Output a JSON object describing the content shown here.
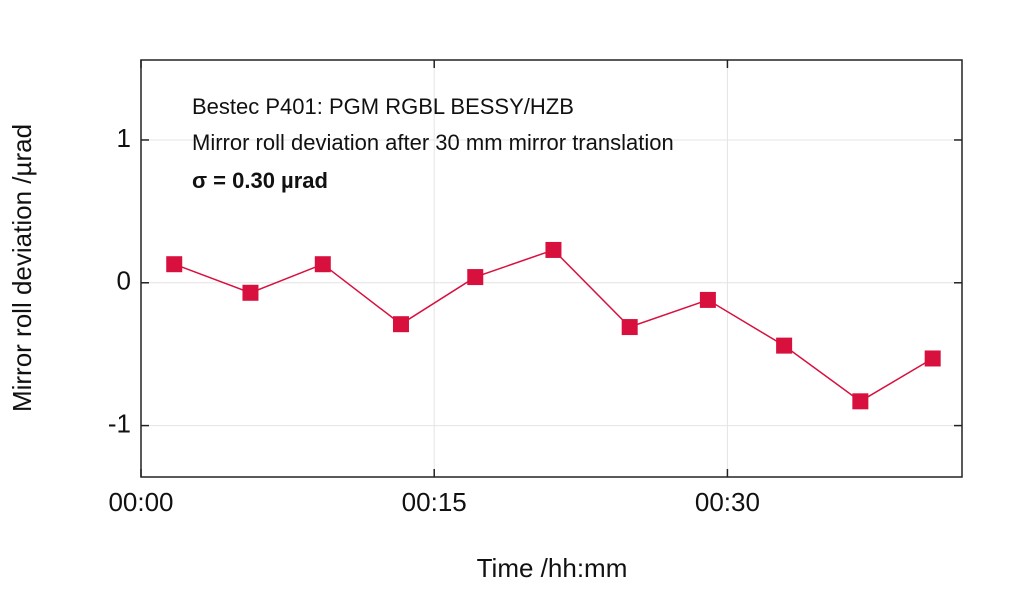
{
  "chart_data": {
    "type": "line",
    "xlabel": "Time /hh:mm",
    "ylabel": "Mirror roll deviation /µrad",
    "annotations": [
      "Bestec P401: PGM RGBL BESSY/HZB",
      "Mirror roll deviation after 30 mm mirror translation",
      "σ = 0.30 µrad"
    ],
    "x": [
      1.7,
      5.6,
      9.3,
      13.3,
      17.1,
      21.1,
      25.0,
      29.0,
      32.9,
      36.8,
      40.5
    ],
    "series": [
      {
        "color": "#d8103e",
        "values": [
          0.13,
          -0.07,
          0.13,
          -0.29,
          0.04,
          0.23,
          -0.31,
          -0.12,
          -0.44,
          -0.83,
          -0.53
        ]
      }
    ],
    "xlim": [
      0,
      42
    ],
    "xticks": [
      {
        "value": 0,
        "label": "00:00"
      },
      {
        "value": 15,
        "label": "00:15"
      },
      {
        "value": 30,
        "label": "00:30"
      }
    ],
    "ylim": [
      -1.36,
      1.56
    ],
    "yticks": [
      -1,
      0,
      1
    ],
    "grid": true
  }
}
